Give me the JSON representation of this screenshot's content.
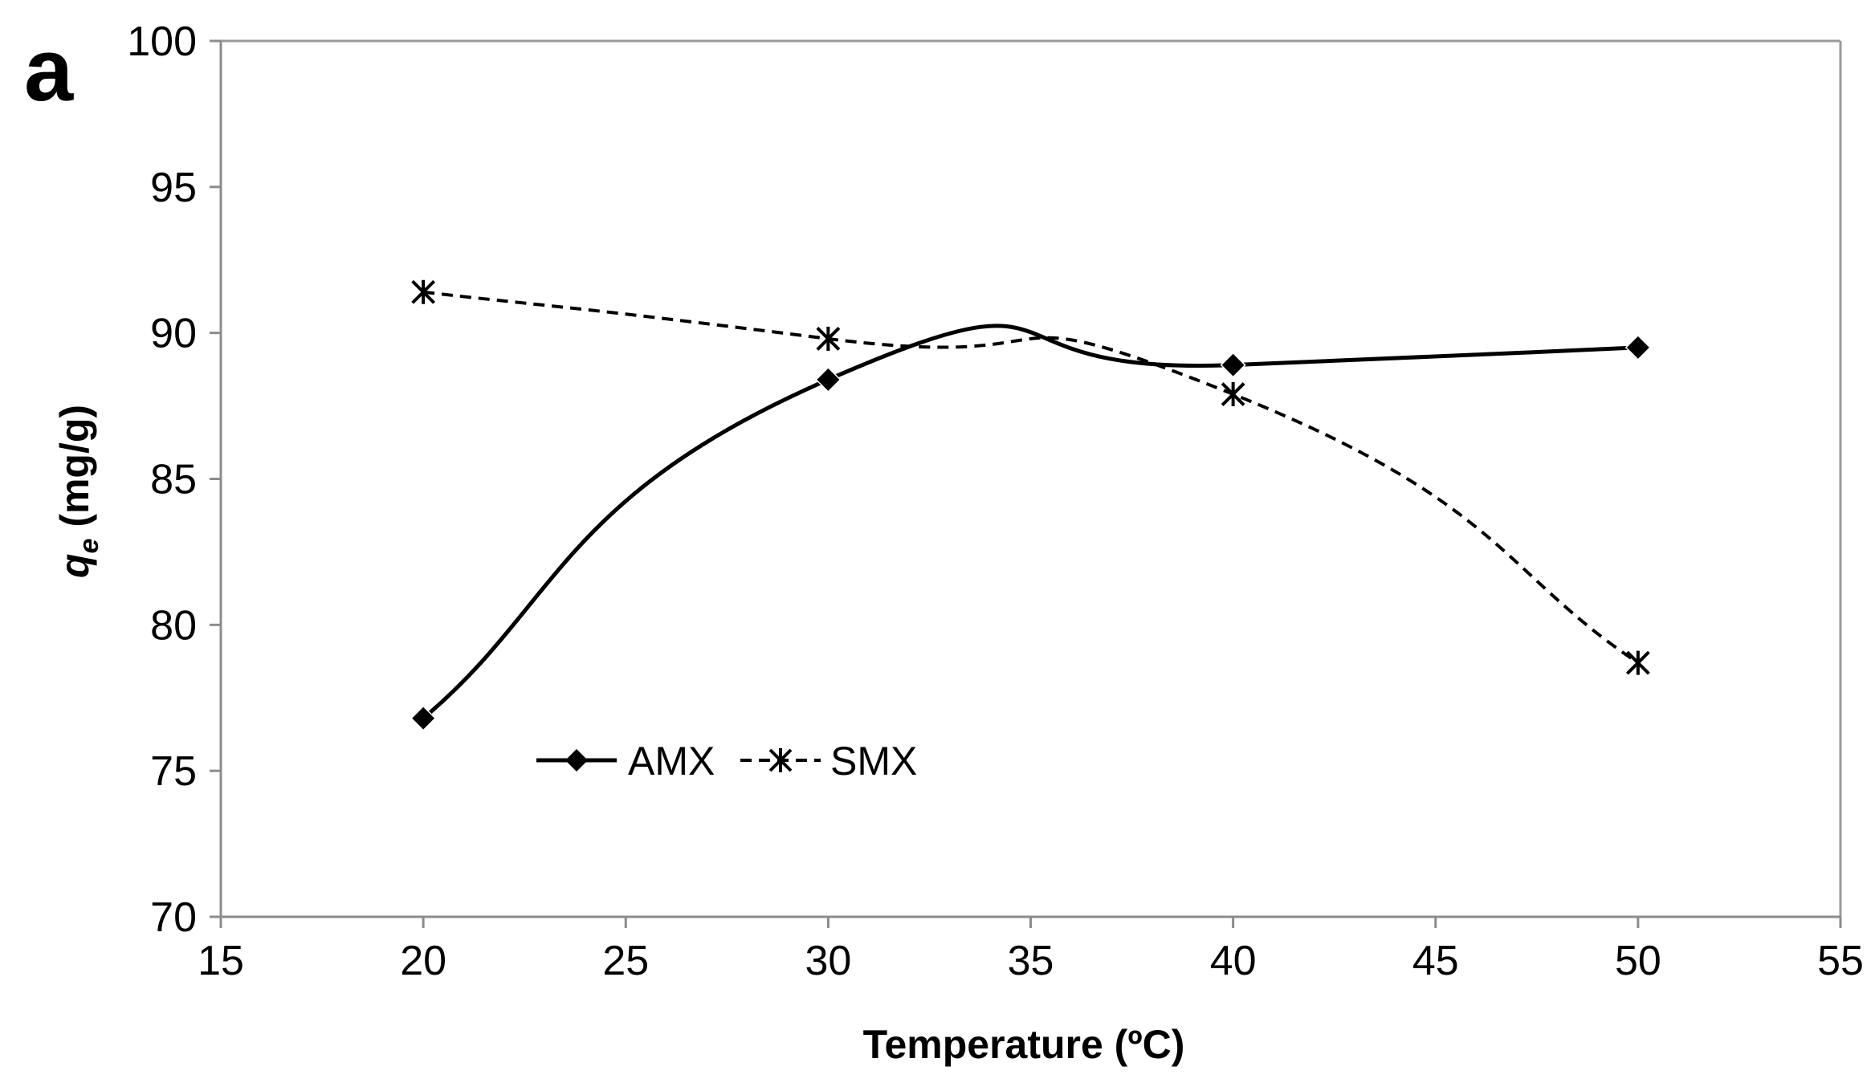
{
  "chart_data": {
    "type": "line",
    "panel_label": "a",
    "title": "",
    "xlabel": "Temperature (ºC)",
    "ylabel_symbol": "q",
    "ylabel_subscript": "e",
    "ylabel_units": " (mg/g)",
    "xlim": [
      15,
      55
    ],
    "ylim": [
      70,
      100
    ],
    "x_ticks": [
      15,
      20,
      25,
      30,
      35,
      40,
      45,
      50,
      55
    ],
    "y_ticks": [
      70,
      75,
      80,
      85,
      90,
      95,
      100
    ],
    "x_tick_labels": [
      "15",
      "20",
      "25",
      "30",
      "35",
      "40",
      "45",
      "50",
      "55"
    ],
    "y_tick_labels": [
      "70",
      "75",
      "80",
      "85",
      "90",
      "95",
      "100"
    ],
    "legend_position": "lower-left",
    "series": [
      {
        "name": "AMX",
        "x": [
          20,
          30,
          40,
          50
        ],
        "values": [
          76.8,
          88.4,
          88.9,
          89.5
        ],
        "line_style": "solid",
        "marker": "diamond",
        "color": "#000000"
      },
      {
        "name": "SMX",
        "x": [
          20,
          30,
          40,
          50
        ],
        "values": [
          91.4,
          89.8,
          87.9,
          78.7
        ],
        "line_style": "dashed",
        "marker": "asterisk",
        "color": "#000000"
      }
    ]
  }
}
